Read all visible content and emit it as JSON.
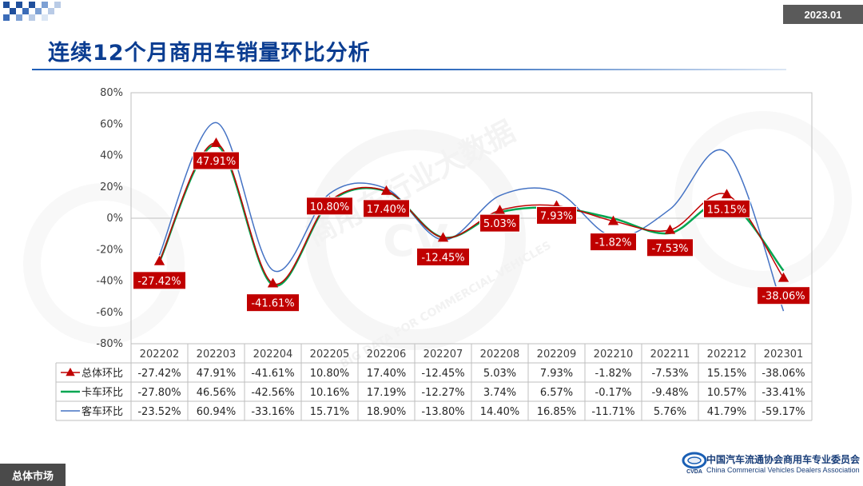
{
  "header": {
    "date_badge": "2023.01",
    "title": "连续12个月商用车销量环比分析"
  },
  "footer": {
    "section_tag": "总体市场",
    "org_name_cn": "中国汽车流通协会商用车专业委员会",
    "org_name_en": "China Commercial Vehicles Dealers Association",
    "logo_text": "CVDA"
  },
  "watermark": {
    "text_cn": "商用车行业大数据",
    "text_en": "BIG DATA FOR COMMERCIAL VEHICLES",
    "text_cv": "CV"
  },
  "colors": {
    "total": "#c00000",
    "truck": "#00a651",
    "bus": "#4472c4",
    "label_bg": "#c00000"
  },
  "chart_data": {
    "type": "line",
    "categories": [
      "202202",
      "202203",
      "202204",
      "202205",
      "202206",
      "202207",
      "202208",
      "202209",
      "202210",
      "202211",
      "202212",
      "202301"
    ],
    "y_ticks": [
      "80%",
      "60%",
      "40%",
      "20%",
      "0%",
      "-20%",
      "-40%",
      "-60%",
      "-80%"
    ],
    "ylim": [
      -80,
      80
    ],
    "grid": false,
    "legend": "table-below",
    "series": [
      {
        "key": "total",
        "name": "总体环比",
        "values": [
          -27.42,
          47.91,
          -41.61,
          10.8,
          17.4,
          -12.45,
          5.03,
          7.93,
          -1.82,
          -7.53,
          15.15,
          -38.06
        ],
        "labels": [
          "-27.42%",
          "47.91%",
          "-41.61%",
          "10.80%",
          "17.40%",
          "-12.45%",
          "5.03%",
          "7.93%",
          "-1.82%",
          "-7.53%",
          "15.15%",
          "-38.06%"
        ]
      },
      {
        "key": "truck",
        "name": "卡车环比",
        "values": [
          -27.8,
          46.56,
          -42.56,
          10.16,
          17.19,
          -12.27,
          3.74,
          6.57,
          -0.17,
          -9.48,
          10.57,
          -33.41
        ],
        "labels": [
          "-27.80%",
          "46.56%",
          "-42.56%",
          "10.16%",
          "17.19%",
          "-12.27%",
          "3.74%",
          "6.57%",
          "-0.17%",
          "-9.48%",
          "10.57%",
          "-33.41%"
        ]
      },
      {
        "key": "bus",
        "name": "客车环比",
        "values": [
          -23.52,
          60.94,
          -33.16,
          15.71,
          18.9,
          -13.8,
          14.4,
          16.85,
          -11.71,
          5.76,
          41.79,
          -59.17
        ],
        "labels": [
          "-23.52%",
          "60.94%",
          "-33.16%",
          "15.71%",
          "18.90%",
          "-13.80%",
          "14.40%",
          "16.85%",
          "-11.71%",
          "5.76%",
          "41.79%",
          "-59.17%"
        ]
      }
    ]
  }
}
